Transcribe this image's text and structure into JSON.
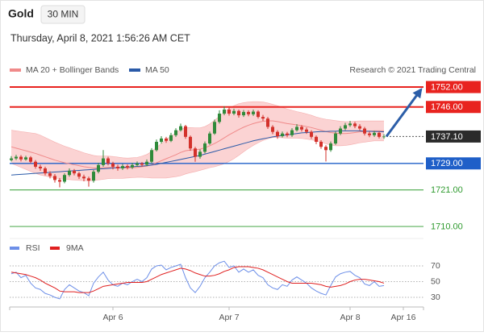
{
  "header": {
    "symbol": "Gold",
    "interval": "30 MIN",
    "timestamp": "Thursday, April 8, 2021 1:56:26 AM CET",
    "credit": "Research © 2021 Trading Central"
  },
  "chart_data": [
    {
      "type": "candlestick",
      "xlim": [
        -1.5,
        86.5
      ],
      "ylim": [
        1708,
        1754
      ],
      "xticks": [
        {
          "value": 21,
          "label": "Apr 6"
        },
        {
          "value": 45,
          "label": "Apr 7"
        },
        {
          "value": 70,
          "label": "Apr 8"
        },
        {
          "value": 81,
          "label": "Apr 16"
        }
      ],
      "up_color": "#2f8a3a",
      "down_color": "#d3312b",
      "band_color": "#fbd3d3",
      "arrow_color": "#2c5ea8",
      "candles": {
        "open": [
          1730.0,
          1730.5,
          1731.0,
          1730.2,
          1730.8,
          1729.5,
          1728.0,
          1727.5,
          1726.0,
          1725.2,
          1724.0,
          1723.5,
          1725.5,
          1726.8,
          1726.0,
          1725.0,
          1724.5,
          1723.8,
          1726.5,
          1728.5,
          1730.5,
          1729.0,
          1728.0,
          1727.5,
          1728.2,
          1727.8,
          1728.5,
          1729.0,
          1728.6,
          1729.5,
          1733.0,
          1735.5,
          1736.5,
          1735.8,
          1737.5,
          1739.0,
          1740.2,
          1737.0,
          1733.5,
          1731.0,
          1732.5,
          1735.0,
          1738.0,
          1741.5,
          1744.0,
          1745.2,
          1744.0,
          1744.8,
          1743.5,
          1744.5,
          1743.8,
          1744.6,
          1743.0,
          1742.5,
          1740.0,
          1738.5,
          1737.2,
          1738.0,
          1737.5,
          1739.0,
          1740.0,
          1739.2,
          1738.5,
          1737.0,
          1735.5,
          1734.0,
          1733.0,
          1735.0,
          1738.0,
          1739.5,
          1740.5,
          1741.0,
          1740.2,
          1739.5,
          1738.0,
          1737.5,
          1738.2,
          1737.0
        ],
        "high": [
          1731.2,
          1731.6,
          1731.5,
          1731.3,
          1731.2,
          1730.0,
          1728.6,
          1728.0,
          1726.6,
          1725.8,
          1724.6,
          1726.0,
          1727.5,
          1727.3,
          1726.5,
          1725.6,
          1725.0,
          1727.0,
          1729.2,
          1733.0,
          1731.0,
          1729.5,
          1728.6,
          1728.8,
          1728.7,
          1729.2,
          1729.6,
          1729.4,
          1730.2,
          1733.6,
          1736.2,
          1737.2,
          1737.0,
          1738.2,
          1739.6,
          1741.0,
          1740.6,
          1737.4,
          1734.0,
          1733.2,
          1735.6,
          1738.6,
          1742.2,
          1745.0,
          1746.2,
          1745.8,
          1745.5,
          1745.2,
          1745.1,
          1745.0,
          1745.2,
          1745.0,
          1743.6,
          1743.0,
          1740.5,
          1739.0,
          1738.6,
          1738.5,
          1739.6,
          1740.8,
          1740.5,
          1739.8,
          1739.0,
          1737.4,
          1736.0,
          1734.5,
          1735.6,
          1738.6,
          1740.2,
          1741.2,
          1741.8,
          1741.5,
          1740.8,
          1740.0,
          1738.6,
          1738.8,
          1738.6,
          1737.8
        ],
        "low": [
          1729.6,
          1730.0,
          1729.6,
          1729.8,
          1729.0,
          1727.4,
          1726.8,
          1725.4,
          1724.5,
          1723.2,
          1721.8,
          1723.0,
          1725.0,
          1725.4,
          1724.3,
          1723.6,
          1722.0,
          1723.2,
          1726.0,
          1728.0,
          1728.4,
          1727.2,
          1726.8,
          1727.0,
          1727.2,
          1727.3,
          1728.0,
          1728.0,
          1728.2,
          1729.0,
          1732.6,
          1735.0,
          1735.2,
          1735.4,
          1737.0,
          1738.6,
          1736.4,
          1732.8,
          1729.5,
          1730.4,
          1732.0,
          1734.6,
          1737.6,
          1741.0,
          1743.5,
          1743.4,
          1743.5,
          1742.8,
          1743.0,
          1743.2,
          1743.3,
          1742.5,
          1741.8,
          1739.4,
          1737.8,
          1736.4,
          1736.8,
          1736.9,
          1737.0,
          1738.6,
          1738.6,
          1737.9,
          1736.4,
          1734.8,
          1733.4,
          1729.6,
          1732.5,
          1734.6,
          1737.5,
          1739.0,
          1740.0,
          1739.6,
          1738.9,
          1737.4,
          1736.9,
          1737.0,
          1736.5,
          1736.4
        ],
        "close": [
          1730.5,
          1731.0,
          1730.2,
          1730.8,
          1729.5,
          1728.0,
          1727.5,
          1726.0,
          1725.2,
          1724.0,
          1723.5,
          1725.5,
          1726.8,
          1726.0,
          1725.0,
          1724.5,
          1723.8,
          1726.5,
          1728.5,
          1730.5,
          1729.0,
          1728.0,
          1727.5,
          1728.2,
          1727.8,
          1728.5,
          1729.0,
          1728.6,
          1729.5,
          1733.0,
          1735.5,
          1736.5,
          1735.8,
          1737.5,
          1739.0,
          1740.2,
          1737.0,
          1733.5,
          1731.0,
          1732.5,
          1735.0,
          1738.0,
          1741.5,
          1744.0,
          1745.2,
          1744.0,
          1744.8,
          1743.5,
          1744.5,
          1743.8,
          1744.6,
          1743.0,
          1742.5,
          1740.0,
          1738.5,
          1737.2,
          1738.0,
          1737.5,
          1739.0,
          1740.0,
          1739.2,
          1738.5,
          1737.0,
          1735.5,
          1734.0,
          1733.0,
          1735.0,
          1738.0,
          1739.5,
          1740.5,
          1741.0,
          1740.2,
          1739.5,
          1738.0,
          1737.5,
          1738.2,
          1737.0,
          1737.1
        ]
      },
      "series": [
        {
          "name": "MA 20 + Bollinger Bands",
          "color": "#f08a8a",
          "values": [
            1734.0,
            1733.6,
            1733.2,
            1732.8,
            1732.4,
            1732.0,
            1731.5,
            1731.0,
            1730.5,
            1730.0,
            1729.6,
            1729.2,
            1728.9,
            1728.6,
            1728.3,
            1728.0,
            1727.8,
            1727.6,
            1727.6,
            1727.7,
            1727.8,
            1727.8,
            1727.7,
            1727.6,
            1727.6,
            1727.7,
            1727.8,
            1728.0,
            1728.2,
            1728.6,
            1729.2,
            1729.8,
            1730.4,
            1731.0,
            1731.6,
            1732.3,
            1732.8,
            1733.0,
            1733.1,
            1733.3,
            1733.7,
            1734.3,
            1735.0,
            1735.8,
            1736.7,
            1737.6,
            1738.4,
            1739.2,
            1739.9,
            1740.5,
            1741.0,
            1741.4,
            1741.7,
            1741.8,
            1741.8,
            1741.6,
            1741.3,
            1741.0,
            1740.8,
            1740.6,
            1740.4,
            1740.1,
            1739.8,
            1739.4,
            1739.0,
            1738.6,
            1738.3,
            1738.1,
            1738.0,
            1738.0,
            1738.1,
            1738.3,
            1738.5,
            1738.6,
            1738.7,
            1738.8,
            1738.8,
            1738.8
          ],
          "upper": [
            1739.0,
            1738.8,
            1738.6,
            1738.4,
            1738.2,
            1738.0,
            1737.5,
            1736.8,
            1736.1,
            1735.4,
            1734.8,
            1734.2,
            1733.7,
            1733.2,
            1732.7,
            1732.2,
            1731.8,
            1731.4,
            1731.2,
            1731.2,
            1731.2,
            1731.1,
            1730.9,
            1730.7,
            1730.6,
            1730.7,
            1730.8,
            1731.2,
            1731.7,
            1732.6,
            1733.8,
            1735.0,
            1736.2,
            1737.2,
            1738.2,
            1739.3,
            1739.8,
            1739.8,
            1739.7,
            1739.7,
            1740.1,
            1740.9,
            1742.0,
            1743.2,
            1744.5,
            1745.6,
            1746.4,
            1747.0,
            1747.3,
            1747.5,
            1747.6,
            1747.6,
            1747.5,
            1747.2,
            1746.8,
            1746.4,
            1745.9,
            1745.4,
            1745.0,
            1744.6,
            1744.3,
            1743.9,
            1743.5,
            1743.0,
            1742.6,
            1742.3,
            1742.1,
            1741.9,
            1741.7,
            1741.6,
            1741.6,
            1741.7,
            1741.8,
            1741.8,
            1741.8,
            1741.8,
            1741.8,
            1741.8
          ],
          "lower": [
            1729.0,
            1728.4,
            1727.8,
            1727.2,
            1726.6,
            1726.0,
            1725.5,
            1725.2,
            1724.9,
            1724.6,
            1724.4,
            1724.2,
            1724.1,
            1724.0,
            1723.9,
            1723.8,
            1723.8,
            1723.8,
            1724.0,
            1724.2,
            1724.4,
            1724.5,
            1724.5,
            1724.5,
            1724.6,
            1724.7,
            1724.8,
            1724.8,
            1724.7,
            1724.6,
            1724.6,
            1724.6,
            1724.6,
            1724.8,
            1725.0,
            1725.3,
            1725.8,
            1726.2,
            1726.5,
            1726.9,
            1727.3,
            1727.7,
            1728.0,
            1728.4,
            1728.9,
            1729.6,
            1730.4,
            1731.4,
            1732.5,
            1733.5,
            1734.4,
            1735.2,
            1735.9,
            1736.4,
            1736.8,
            1736.8,
            1736.7,
            1736.6,
            1736.6,
            1736.6,
            1736.5,
            1736.3,
            1736.1,
            1735.8,
            1735.4,
            1734.9,
            1734.5,
            1734.3,
            1734.3,
            1734.4,
            1734.6,
            1734.9,
            1735.2,
            1735.4,
            1735.6,
            1735.8,
            1735.8,
            1735.8
          ]
        },
        {
          "name": "MA 50",
          "color": "#2a5aa8",
          "values": [
            1725.5,
            1725.6,
            1725.7,
            1725.8,
            1725.9,
            1726.0,
            1726.1,
            1726.2,
            1726.3,
            1726.4,
            1726.5,
            1726.6,
            1726.7,
            1726.8,
            1726.9,
            1727.0,
            1727.1,
            1727.2,
            1727.3,
            1727.4,
            1727.5,
            1727.6,
            1727.7,
            1727.8,
            1727.9,
            1728.0,
            1728.1,
            1728.2,
            1728.3,
            1728.5,
            1728.7,
            1729.0,
            1729.3,
            1729.6,
            1729.9,
            1730.2,
            1730.5,
            1730.8,
            1731.1,
            1731.4,
            1731.8,
            1732.2,
            1732.6,
            1733.0,
            1733.4,
            1733.8,
            1734.2,
            1734.6,
            1735.0,
            1735.4,
            1735.8,
            1736.1,
            1736.4,
            1736.7,
            1737.0,
            1737.2,
            1737.4,
            1737.6,
            1737.8,
            1738.0,
            1738.2,
            1738.3,
            1738.4,
            1738.5,
            1738.6,
            1738.6,
            1738.7,
            1738.7,
            1738.8,
            1738.8,
            1738.8,
            1738.8,
            1738.8,
            1738.7,
            1738.7,
            1738.6,
            1738.6,
            1738.5
          ]
        }
      ],
      "levels": [
        {
          "value": 1752,
          "label": "1752.00",
          "color": "#e8231f",
          "boxed": true
        },
        {
          "value": 1746,
          "label": "1746.00",
          "color": "#e8231f",
          "boxed": true
        },
        {
          "value": 1729,
          "label": "1729.00",
          "color": "#1f5fc8",
          "boxed": true
        },
        {
          "value": 1721,
          "label": "1721.00",
          "color": "#2e9a2e",
          "boxed": false
        },
        {
          "value": 1710,
          "label": "1710.00",
          "color": "#2e9a2e",
          "boxed": false
        }
      ],
      "last": {
        "value": 1737.1,
        "label": "1737.10",
        "color": "#2b2b2b"
      }
    },
    {
      "type": "line",
      "ylim": [
        20,
        82
      ],
      "yticks": [
        70,
        50,
        30
      ],
      "series": [
        {
          "name": "RSI",
          "color": "#6d8fe8",
          "values": [
            60,
            62,
            55,
            58,
            48,
            42,
            40,
            35,
            33,
            30,
            28,
            40,
            46,
            42,
            38,
            36,
            32,
            48,
            56,
            62,
            52,
            46,
            44,
            48,
            46,
            50,
            53,
            50,
            55,
            66,
            70,
            71,
            65,
            68,
            70,
            72,
            55,
            42,
            36,
            44,
            55,
            62,
            70,
            74,
            76,
            68,
            70,
            62,
            66,
            62,
            65,
            58,
            55,
            46,
            42,
            40,
            46,
            44,
            52,
            56,
            52,
            48,
            42,
            38,
            35,
            33,
            45,
            56,
            60,
            62,
            63,
            58,
            55,
            47,
            45,
            50,
            44,
            45
          ]
        },
        {
          "name": "9MA",
          "color": "#e02020",
          "values": [
            62,
            61,
            60,
            59,
            57,
            55,
            52,
            48,
            45,
            42,
            38,
            37,
            37,
            37,
            36,
            36,
            36,
            38,
            41,
            44,
            45,
            46,
            47,
            48,
            49,
            49,
            49,
            49,
            50,
            53,
            56,
            59,
            61,
            63,
            65,
            67,
            66,
            64,
            61,
            59,
            57,
            57,
            58,
            60,
            63,
            65,
            68,
            69,
            69,
            69,
            68,
            67,
            65,
            62,
            59,
            56,
            53,
            50,
            48,
            48,
            48,
            48,
            48,
            47,
            46,
            44,
            43,
            44,
            45,
            47,
            50,
            52,
            53,
            53,
            52,
            51,
            50,
            48
          ]
        }
      ]
    }
  ]
}
